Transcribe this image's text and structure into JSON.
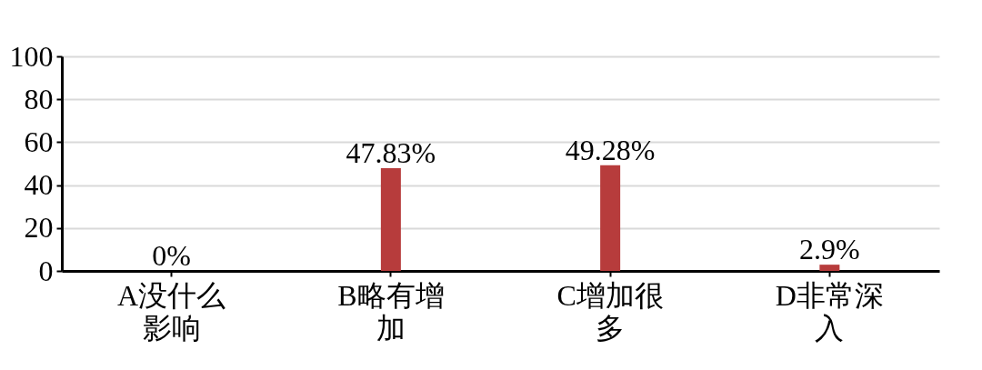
{
  "chart_data": {
    "type": "bar",
    "categories": [
      "A没什么影响",
      "B略有增加",
      "C增加很多",
      "D非常深入"
    ],
    "values": [
      0,
      47.83,
      49.28,
      2.9
    ],
    "value_labels": [
      "0%",
      "47.83%",
      "49.28%",
      "2.9%"
    ],
    "color": "#b73c3c",
    "ylim": [
      0,
      100
    ],
    "yticks": [
      0,
      20,
      40,
      60,
      80,
      100
    ],
    "grid": "y"
  }
}
